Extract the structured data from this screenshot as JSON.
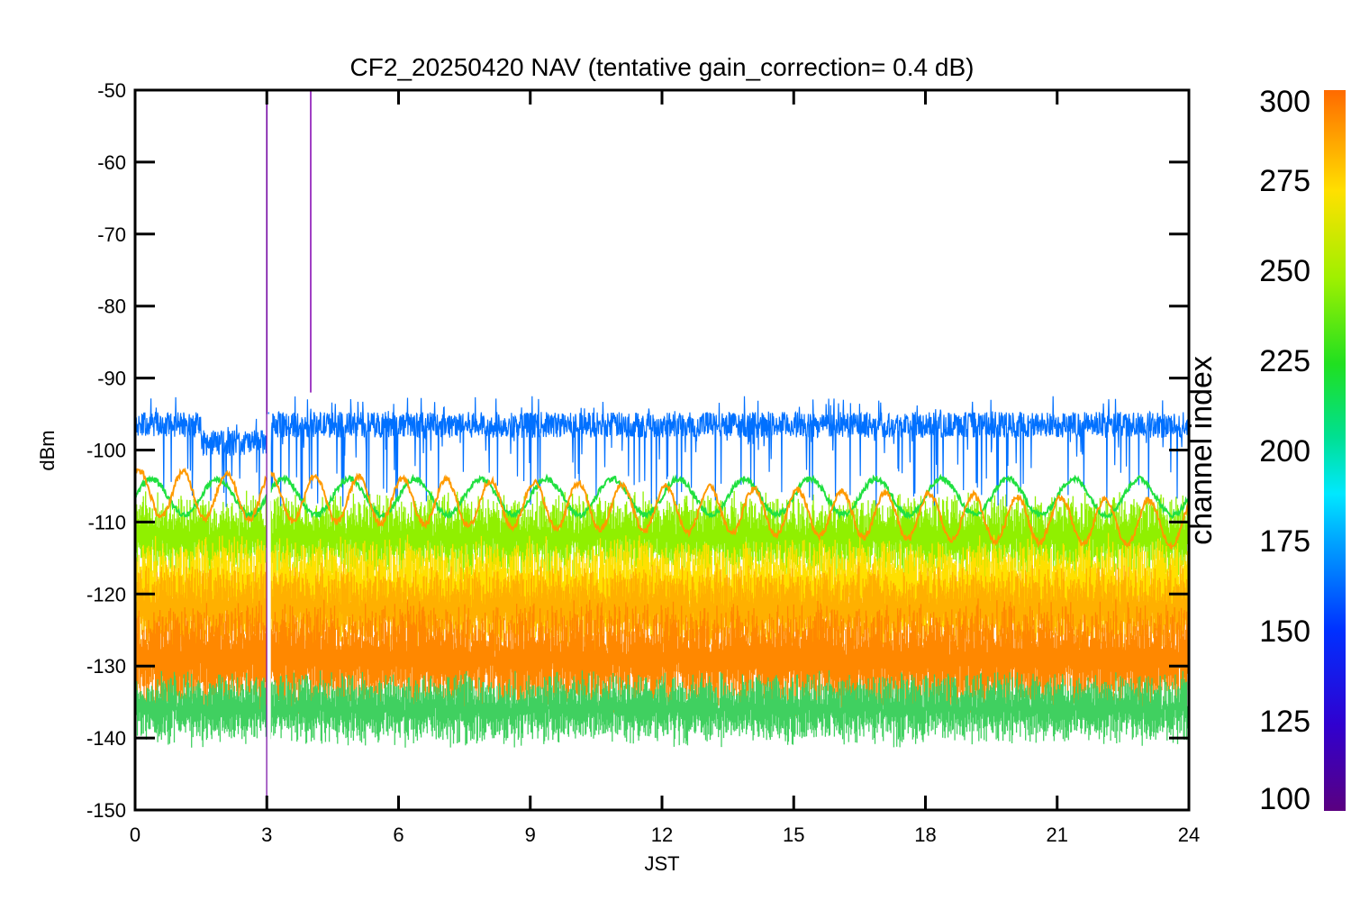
{
  "chart_data": {
    "type": "line",
    "title": "CF2_20250420 NAV (tentative gain_correction=  0.4 dB)",
    "xlabel": "JST",
    "ylabel": "dBm",
    "xlim": [
      0,
      24
    ],
    "ylim": [
      -150,
      -50
    ],
    "x_ticks": [
      0,
      3,
      6,
      9,
      12,
      15,
      18,
      21,
      24
    ],
    "y_ticks": [
      -50,
      -60,
      -70,
      -80,
      -90,
      -100,
      -110,
      -120,
      -130,
      -140,
      -150
    ],
    "grid": false,
    "colorbar": {
      "label": "channel index",
      "range": [
        100,
        300
      ],
      "ticks": [
        300,
        275,
        250,
        225,
        200,
        175,
        150,
        125,
        100
      ],
      "colormap": "rainbow"
    },
    "series": [
      {
        "channel": 150,
        "color": "#0070ff",
        "baseline": -96.5,
        "noise": 1.2,
        "spikes_down_to": -106
      },
      {
        "channel": 215,
        "color": "#20e040",
        "baseline": -106.5,
        "oscillation_amp": 2.5,
        "oscillation_period_h": 1.5
      },
      {
        "channel": 280,
        "color": "#ff9a00",
        "baseline": -106,
        "oscillation_amp": 3.2,
        "oscillation_period_h": 1.0
      },
      {
        "channel": 255,
        "color": "#90f000",
        "band": [
          -116,
          -108
        ]
      },
      {
        "channel": 270,
        "color": "#ffe000",
        "band": [
          -125,
          -114
        ]
      },
      {
        "channel": 290,
        "color": "#ffb000",
        "band": [
          -126,
          -118
        ]
      },
      {
        "channel": 295,
        "color": "#ff8800",
        "band": [
          -135,
          -123
        ]
      },
      {
        "channel": 230,
        "color": "#40d060",
        "band": [
          -139,
          -133
        ]
      }
    ],
    "annotations": [
      {
        "type": "vertical_spike",
        "x": 3.0,
        "color": "#7000a0",
        "from": -150,
        "to": -50
      },
      {
        "type": "vertical_spike",
        "x": 4.0,
        "color": "#8000b0",
        "from": -92,
        "to": -50
      },
      {
        "type": "vertical_spike",
        "x": 3.05,
        "color": "#ff8800",
        "from": -150,
        "to": -125
      },
      {
        "type": "gap",
        "x": 3.05
      }
    ]
  }
}
